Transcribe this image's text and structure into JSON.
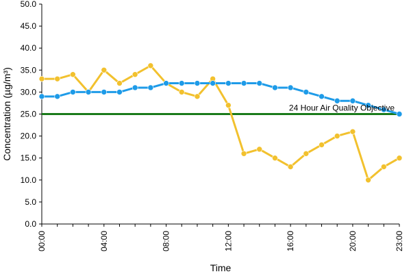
{
  "chart_data": {
    "type": "line",
    "title": "",
    "xlabel": "Time",
    "ylabel": "Concentration (µg/m³)",
    "ylim": [
      0,
      50
    ],
    "y_ticks": [
      "0.0",
      "5.0",
      "10.0",
      "15.0",
      "20.0",
      "25.0",
      "30.0",
      "35.0",
      "40.0",
      "45.0",
      "50.0"
    ],
    "x": [
      "00:00",
      "01:00",
      "02:00",
      "03:00",
      "04:00",
      "05:00",
      "06:00",
      "07:00",
      "08:00",
      "09:00",
      "10:00",
      "11:00",
      "12:00",
      "13:00",
      "14:00",
      "15:00",
      "16:00",
      "17:00",
      "18:00",
      "19:00",
      "20:00",
      "21:00",
      "22:00",
      "23:00"
    ],
    "x_tick_labels": [
      "00:00",
      "04:00",
      "08:00",
      "12:00",
      "16:00",
      "20:00",
      "23:00"
    ],
    "grid": false,
    "series": [
      {
        "color": "#f2c12e",
        "values": [
          33,
          33,
          34,
          30,
          35,
          32,
          34,
          36,
          32,
          30,
          29,
          33,
          27,
          16,
          17,
          15,
          13,
          16,
          18,
          20,
          21,
          10,
          13,
          15
        ]
      },
      {
        "color": "#1e9be8",
        "values": [
          29,
          29,
          30,
          30,
          30,
          30,
          31,
          31,
          32,
          32,
          32,
          32,
          32,
          32,
          32,
          31,
          31,
          30,
          29,
          28,
          28,
          27,
          26,
          25
        ]
      }
    ],
    "reference_line": {
      "label": "24 Hour Air Quality Objective",
      "value": 25,
      "color": "#1a7a1a"
    }
  }
}
